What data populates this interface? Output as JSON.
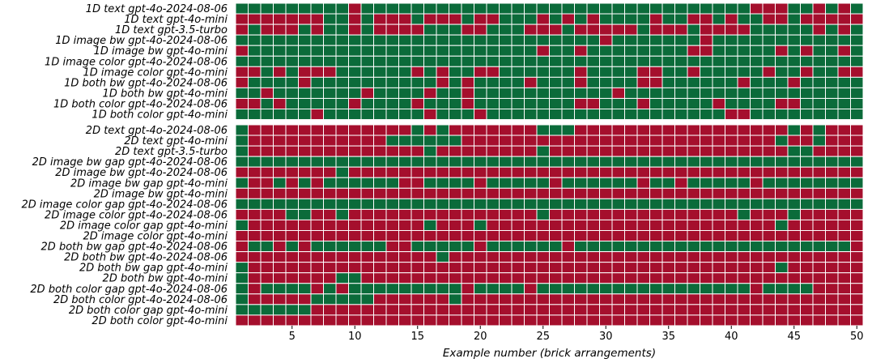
{
  "colors": {
    "correct": "#0b6b3a",
    "incorrect": "#a50f2d",
    "gridline": "#ffffff"
  },
  "chart_data": {
    "type": "heatmap",
    "xlabel": "Example number (brick arrangements)",
    "x_ticks": [
      5,
      10,
      15,
      20,
      25,
      30,
      35,
      40,
      45,
      50
    ],
    "x_range": [
      1,
      50
    ],
    "value_legend": {
      "1": "green",
      "0": "red"
    },
    "panels": [
      {
        "rows": [
          {
            "label": "1D text  gpt-4o-2024-08-06",
            "cells": "11111111101111111111111111111111111111111000110101"
          },
          {
            "label": "1D text  gpt-4o-mini",
            "cells": "00000001101000100010011101010111101100101100100000"
          },
          {
            "label": "1D text  gpt-3.5-turbo",
            "cells": "01000101101000011100111000100000100010000111110101"
          },
          {
            "label": "1D image bw gpt-4o-2024-08-06",
            "cells": "11111111111111111111111111111011111110111111111111"
          },
          {
            "label": "1D image bw gpt-4o-mini",
            "cells": "01111111111111111111111101101111111100111110101101"
          },
          {
            "label": "1D image color gpt-4o-2024-08-06",
            "cells": "11111111111111111111111111111111111111111111111111"
          },
          {
            "label": "1D image color gpt-4o-mini",
            "cells": "00101000111111010110011111101111001101111101101100"
          },
          {
            "label": "1D both bw gpt-4o-2024-08-06",
            "cells": "01111011111111110101111011101111001111110111011111"
          },
          {
            "label": "1D both bw gpt-4o-mini",
            "cells": "11011111110111101101111111111101111111111111111111"
          },
          {
            "label": "1D both color gpt-4o-2024-08-06",
            "cells": "00101111101111011101111111100111011111011110011111"
          },
          {
            "label": "1D both color gpt-4o-mini",
            "cells": "11111101111111101110111111111111111111100111111111"
          }
        ]
      },
      {
        "rows": [
          {
            "label": "2D text  gpt-4o-2024-08-06",
            "cells": "10000000000000101000000011100000000000000000101000"
          },
          {
            "label": "2D text  gpt-4o-mini",
            "cells": "10000000000011111100000000000000000000000001001000"
          },
          {
            "label": "2D text  gpt-3.5-turbo",
            "cells": "10000000000000010000000010000000000000000000110000"
          },
          {
            "label": "2D image bw gap gpt-4o-2024-08-06",
            "cells": "11111111111111111111111111111111111111111111111111"
          },
          {
            "label": "2D image bw gpt-4o-2024-08-06",
            "cells": "00000000100000000000000000000000000000000000000000"
          },
          {
            "label": "2D image bw gap gpt-4o-mini",
            "cells": "10010101111110011110111110111111011011111011111111"
          },
          {
            "label": "2D image bw gpt-4o-mini",
            "cells": "00000000000000000000000000000000000000000000000000"
          },
          {
            "label": "2D image color gap gpt-4o-2024-08-06",
            "cells": "11111111111111111111111111111111111111111111111111"
          },
          {
            "label": "2D image color gpt-4o-2024-08-06",
            "cells": "00001100100000000000000010000000000000001000100000"
          },
          {
            "label": "2D image color gap gpt-4o-mini",
            "cells": "10000000000000010001000000000000000000000001000000"
          },
          {
            "label": "2D image color gpt-4o-mini",
            "cells": "00000000000000000000000000000000000000000000000000"
          },
          {
            "label": "2D both bw gap gpt-4o-2024-08-06",
            "cells": "01101011111100111110111111011111111111111111111110"
          },
          {
            "label": "2D both bw gpt-4o-2024-08-06",
            "cells": "00000000000000001000000000000000000000000000000000"
          },
          {
            "label": "2D both bw gap gpt-4o-mini",
            "cells": "10000000000000000000000000000000000000000001000000"
          },
          {
            "label": "2D both bw gpt-4o-mini",
            "cells": "10000000110000000000000000000000000000000000000000"
          },
          {
            "label": "2D both color gap gpt-4o-2024-08-06",
            "cells": "10111101011111111101111011111111111111111011110000"
          },
          {
            "label": "2D both color gpt-4o-2024-08-06",
            "cells": "10000011111000000100000000000000000000000000000000"
          },
          {
            "label": "2D both color gap gpt-4o-mini",
            "cells": "11111100000000000000000000000000000000000000000000"
          },
          {
            "label": "2D both color gpt-4o-mini",
            "cells": "00000000000000000000000000000000000000000000000000"
          }
        ]
      }
    ]
  }
}
